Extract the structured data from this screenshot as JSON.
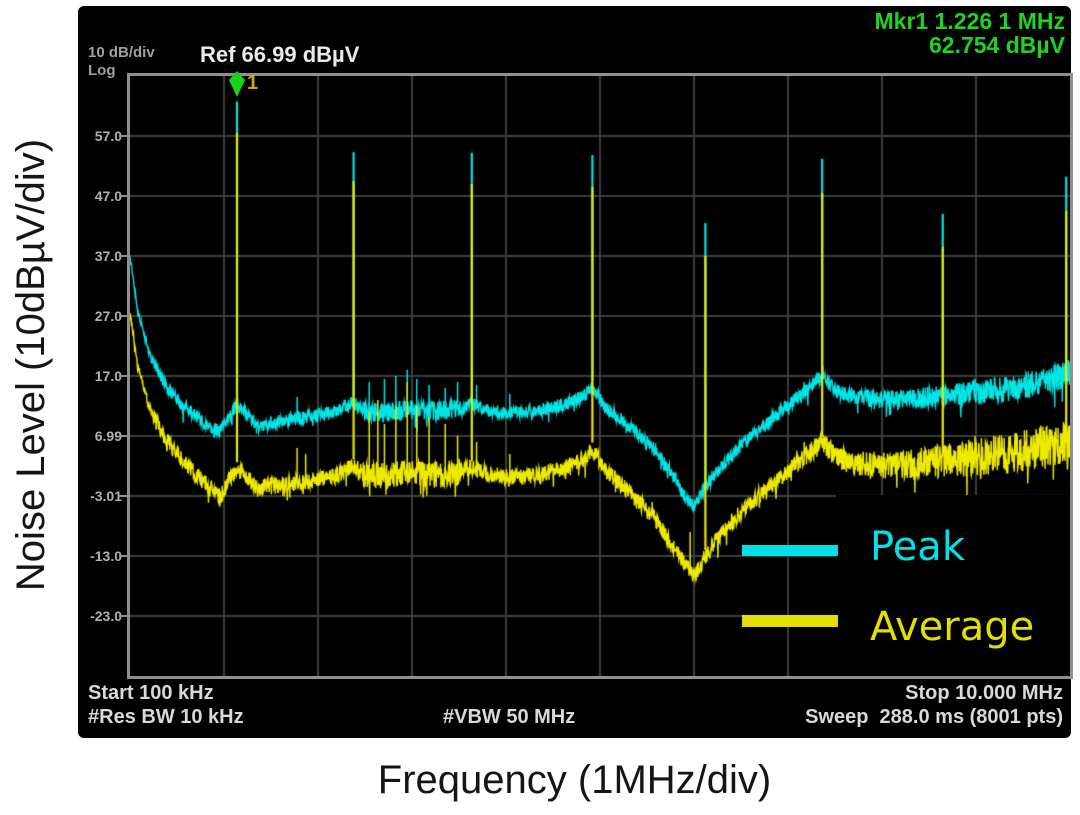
{
  "header": {
    "amp_scale": "10 dB/div",
    "scale_type": "Log",
    "ref": "Ref 66.99 dBµV",
    "marker_line1": "Mkr1 1.226 1 MHz",
    "marker_line2": "62.754 dBµV",
    "marker_number": "1"
  },
  "footer": {
    "start": "Start 100 kHz",
    "res_bw": "#Res BW 10 kHz",
    "vbw": "#VBW 50 MHz",
    "stop": "Stop 10.000 MHz",
    "sweep": "Sweep  288.0 ms (8001 pts)"
  },
  "axis_titles": {
    "y": "Noise Level (10dBµV/div)",
    "x": "Frequency (1MHz/div)"
  },
  "legend": {
    "items": [
      {
        "label": "Peak",
        "color": "#00e2e8"
      },
      {
        "label": "Average",
        "color": "#e3df00"
      }
    ]
  },
  "colors": {
    "screen_bg": "#000000",
    "frame": "#8f8f8f",
    "grid": "#3d3d3d",
    "marker_green": "#17d417",
    "marker_text_green": "#1ed41e",
    "annotation_gray": "#d9d9d9"
  },
  "chart_data": {
    "type": "line",
    "title": "EMI noise spectrum, Peak vs Average detector",
    "xlabel": "Frequency (1MHz/div)",
    "ylabel": "Noise Level (10dBµV/div)",
    "x_start_mhz": 0.1,
    "x_stop_mhz": 10.0,
    "y_ref_dbuv": 66.99,
    "db_per_div": 10,
    "divisions_x": 10,
    "divisions_y": 10,
    "grid_color": "#3d3d3d",
    "y_tick_labels": [
      "57.0",
      "47.0",
      "37.0",
      "27.0",
      "17.0",
      "6.99",
      "-3.01",
      "-13.0",
      "-23.0"
    ],
    "marker": {
      "id": "1",
      "freq_mhz": 1.226,
      "value_dbuv": 62.754
    },
    "series": [
      {
        "name": "Peak",
        "color": "#00e5e5",
        "seed": 13,
        "noise": {
          "base": 1.1,
          "ramp_start": 7.0,
          "ramp_rate": 0.45,
          "cluster": [
            2.55,
            3.6,
            1.5
          ]
        },
        "floor_points": [
          [
            0.1,
            37
          ],
          [
            0.18,
            28
          ],
          [
            0.3,
            21
          ],
          [
            0.45,
            16
          ],
          [
            0.62,
            12.5
          ],
          [
            0.8,
            10.2
          ],
          [
            0.95,
            8.4
          ],
          [
            1.05,
            7.8
          ],
          [
            1.14,
            10.2
          ],
          [
            1.227,
            12.2
          ],
          [
            1.32,
            10.8
          ],
          [
            1.45,
            8.6
          ],
          [
            1.6,
            9.2
          ],
          [
            1.8,
            9.8
          ],
          [
            2.0,
            10.2
          ],
          [
            2.2,
            10.8
          ],
          [
            2.35,
            11.8
          ],
          [
            2.455,
            12.6
          ],
          [
            2.55,
            11.2
          ],
          [
            2.75,
            10.8
          ],
          [
            3.0,
            11.4
          ],
          [
            3.3,
            11.2
          ],
          [
            3.55,
            11.6
          ],
          [
            3.7,
            12.4
          ],
          [
            3.85,
            11.2
          ],
          [
            4.1,
            10.8
          ],
          [
            4.4,
            11.2
          ],
          [
            4.7,
            12.4
          ],
          [
            4.9,
            13.8
          ],
          [
            4.97,
            15.2
          ],
          [
            5.1,
            11.8
          ],
          [
            5.35,
            8.8
          ],
          [
            5.6,
            5.2
          ],
          [
            5.8,
            0.8
          ],
          [
            5.95,
            -3.2
          ],
          [
            6.05,
            -4.6
          ],
          [
            6.16,
            -1.6
          ],
          [
            6.35,
            2.4
          ],
          [
            6.6,
            6.4
          ],
          [
            6.9,
            10.4
          ],
          [
            7.15,
            13.6
          ],
          [
            7.39,
            17
          ],
          [
            7.55,
            14.4
          ],
          [
            7.8,
            13.4
          ],
          [
            8.1,
            13
          ],
          [
            8.4,
            13.2
          ],
          [
            8.7,
            13.8
          ],
          [
            9.0,
            14.2
          ],
          [
            9.3,
            14.8
          ],
          [
            9.6,
            15.6
          ],
          [
            9.8,
            16.4
          ],
          [
            10.0,
            17.4
          ]
        ],
        "spikes": [
          [
            1.227,
            62.75
          ],
          [
            2.455,
            54.3
          ],
          [
            3.7,
            54.2
          ],
          [
            4.97,
            53.8
          ],
          [
            6.16,
            42.5
          ],
          [
            7.39,
            53.2
          ],
          [
            8.66,
            44.0
          ],
          [
            9.96,
            50.2
          ]
        ],
        "minor_spikes": [
          [
            1.86,
            13.5
          ],
          [
            2.62,
            16
          ],
          [
            2.78,
            16.5
          ],
          [
            2.9,
            17
          ],
          [
            3.02,
            18
          ],
          [
            3.12,
            16.5
          ],
          [
            3.25,
            15.5
          ],
          [
            3.42,
            15
          ],
          [
            3.55,
            16
          ],
          [
            3.75,
            15.5
          ],
          [
            4.1,
            14
          ],
          [
            7.2,
            16
          ],
          [
            7.55,
            15
          ],
          [
            9.0,
            16.5
          ]
        ]
      },
      {
        "name": "Average",
        "color": "#edea00",
        "seed": 77,
        "noise": {
          "base": 1.4,
          "ramp_start": 7.0,
          "ramp_rate": 0.85,
          "cluster": [
            2.55,
            3.6,
            1.6
          ]
        },
        "floor_points": [
          [
            0.1,
            27.5
          ],
          [
            0.18,
            19
          ],
          [
            0.3,
            12
          ],
          [
            0.45,
            7
          ],
          [
            0.62,
            3.5
          ],
          [
            0.8,
            0.4
          ],
          [
            0.95,
            -1.8
          ],
          [
            1.05,
            -3.2
          ],
          [
            1.14,
            -0.6
          ],
          [
            1.227,
            1.6
          ],
          [
            1.32,
            0.4
          ],
          [
            1.45,
            -1.9
          ],
          [
            1.6,
            -1.3
          ],
          [
            1.8,
            -0.9
          ],
          [
            2.0,
            -0.6
          ],
          [
            2.2,
            0.1
          ],
          [
            2.35,
            1.1
          ],
          [
            2.455,
            2.1
          ],
          [
            2.55,
            0.7
          ],
          [
            2.75,
            0.2
          ],
          [
            3.0,
            0.8
          ],
          [
            3.3,
            0.4
          ],
          [
            3.55,
            0.9
          ],
          [
            3.7,
            1.8
          ],
          [
            3.85,
            0.7
          ],
          [
            4.1,
            0.1
          ],
          [
            4.4,
            0.5
          ],
          [
            4.7,
            1.9
          ],
          [
            4.9,
            3.4
          ],
          [
            4.97,
            4.9
          ],
          [
            5.1,
            1.4
          ],
          [
            5.35,
            -2.2
          ],
          [
            5.6,
            -6.2
          ],
          [
            5.8,
            -10.8
          ],
          [
            5.95,
            -14.6
          ],
          [
            6.05,
            -16.2
          ],
          [
            6.16,
            -13
          ],
          [
            6.35,
            -9
          ],
          [
            6.6,
            -4.6
          ],
          [
            6.9,
            -0.6
          ],
          [
            7.15,
            2.9
          ],
          [
            7.39,
            5.9
          ],
          [
            7.55,
            3.4
          ],
          [
            7.8,
            2.4
          ],
          [
            8.1,
            2
          ],
          [
            8.4,
            2.4
          ],
          [
            8.7,
            3
          ],
          [
            9.0,
            3.4
          ],
          [
            9.3,
            4
          ],
          [
            9.6,
            4.8
          ],
          [
            9.8,
            5.4
          ],
          [
            10.0,
            6.4
          ]
        ],
        "spikes": [
          [
            1.227,
            57.5
          ],
          [
            2.455,
            49.5
          ],
          [
            3.7,
            49.0
          ],
          [
            4.97,
            48.5
          ],
          [
            6.16,
            37.0
          ],
          [
            7.39,
            47.5
          ],
          [
            8.66,
            38.5
          ],
          [
            9.96,
            44.5
          ]
        ],
        "minor_spikes": [
          [
            1.86,
            5
          ],
          [
            1.95,
            4
          ],
          [
            2.62,
            11
          ],
          [
            2.71,
            13
          ],
          [
            2.78,
            9
          ],
          [
            2.9,
            12
          ],
          [
            3.02,
            16
          ],
          [
            3.12,
            12
          ],
          [
            3.25,
            10
          ],
          [
            3.42,
            9
          ],
          [
            3.55,
            7
          ],
          [
            3.75,
            6
          ],
          [
            4.1,
            4
          ],
          [
            5.6,
            -4
          ],
          [
            6.0,
            -9
          ],
          [
            7.2,
            6
          ],
          [
            7.55,
            5
          ],
          [
            9.0,
            7
          ]
        ]
      }
    ]
  }
}
